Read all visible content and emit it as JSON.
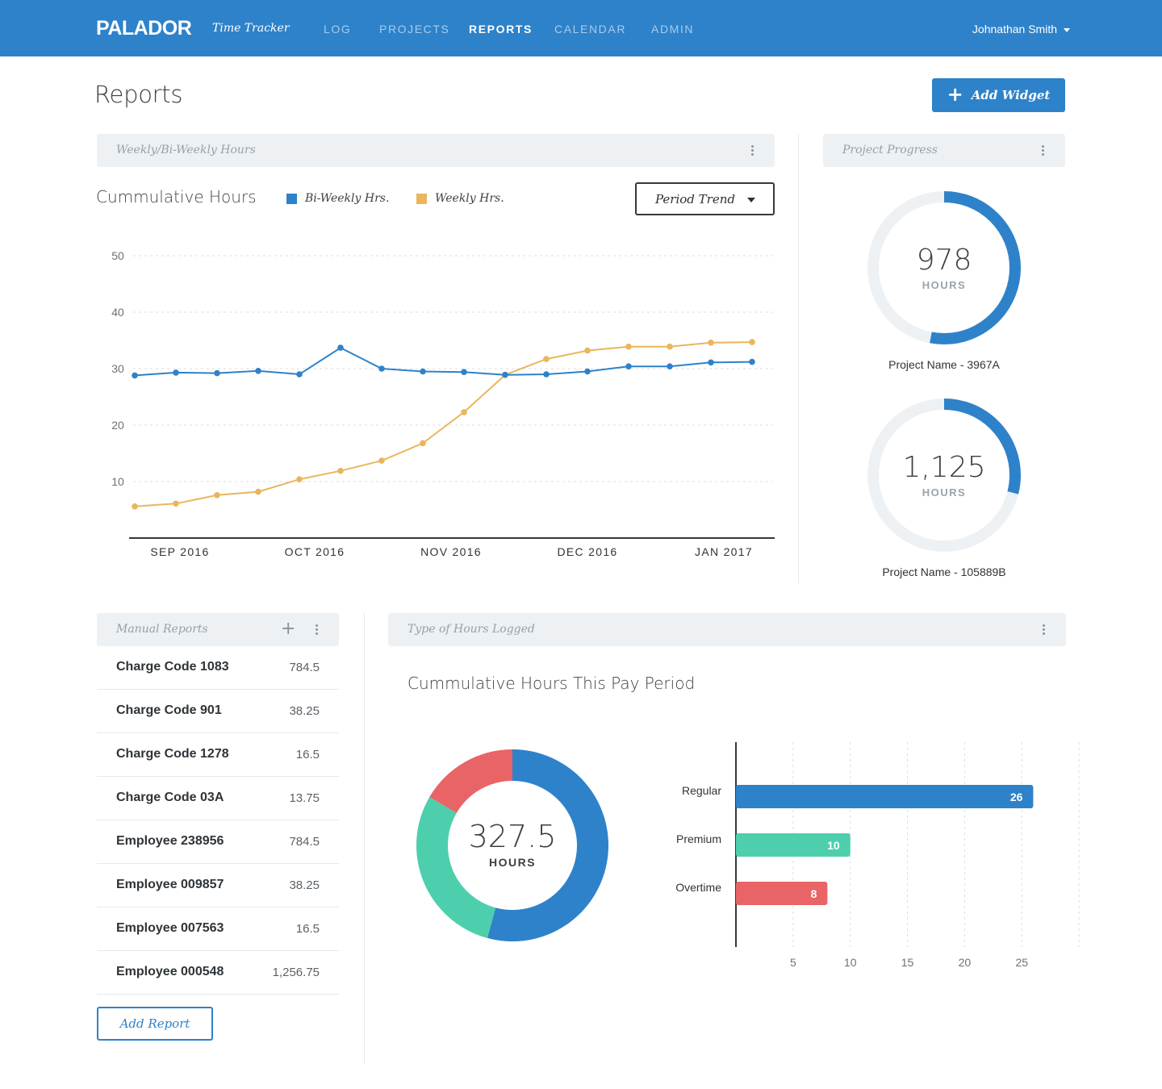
{
  "app": {
    "brand": "PALADOR",
    "subtitle": "Time Tracker"
  },
  "nav": [
    {
      "label": "LOG",
      "active": false
    },
    {
      "label": "PROJECTS",
      "active": false
    },
    {
      "label": "REPORTS",
      "active": true
    },
    {
      "label": "CALENDAR",
      "active": false
    },
    {
      "label": "ADMIN",
      "active": false
    }
  ],
  "user": {
    "name": "Johnathan Smith"
  },
  "page": {
    "title": "Reports",
    "add_widget_label": "Add Widget"
  },
  "colors": {
    "brand_blue": "#2e82c9",
    "weekly_yellow": "#e9b65c",
    "premium_green": "#4dcfad",
    "overtime_red": "#e96466"
  },
  "weekly_widget": {
    "header": "Weekly/Bi-Weekly Hours",
    "chart_title": "Cummulative Hours",
    "legend": {
      "biweekly": "Bi-Weekly Hrs.",
      "weekly": "Weekly Hrs."
    },
    "dropdown": "Period Trend"
  },
  "project_widget": {
    "header": "Project Progress",
    "projects": [
      {
        "value": "978",
        "unit": "HOURS",
        "name": "Project Name - 3967A",
        "progress": 0.53
      },
      {
        "value": "1,125",
        "unit": "HOURS",
        "name": "Project Name - 105889B",
        "progress": 0.29
      }
    ]
  },
  "manual_reports": {
    "header": "Manual Reports",
    "rows": [
      {
        "name": "Charge Code 1083",
        "value": "784.5"
      },
      {
        "name": "Charge Code 901",
        "value": "38.25"
      },
      {
        "name": "Charge Code 1278",
        "value": "16.5"
      },
      {
        "name": "Charge Code 03A",
        "value": "13.75"
      },
      {
        "name": "Employee 238956",
        "value": "784.5"
      },
      {
        "name": "Employee 009857",
        "value": "38.25"
      },
      {
        "name": "Employee 007563",
        "value": "16.5"
      },
      {
        "name": "Employee 000548",
        "value": "1,256.75"
      }
    ],
    "add_label": "Add Report"
  },
  "hours_widget": {
    "header": "Type of Hours Logged",
    "chart_title": "Cummulative Hours This Pay Period",
    "donut_value": "327.5",
    "donut_unit": "HOURS"
  },
  "chart_data": [
    {
      "type": "line",
      "title": "Cummulative Hours",
      "x_tick_labels": [
        "SEP 2016",
        "OCT 2016",
        "NOV 2016",
        "DEC 2016",
        "JAN 2017"
      ],
      "y_ticks": [
        10,
        20,
        30,
        40,
        50
      ],
      "ylim": [
        0,
        50
      ],
      "grid": true,
      "series": [
        {
          "name": "Bi-Weekly Hrs.",
          "color": "#2e82c9",
          "values": [
            28.8,
            29.3,
            29.2,
            29.6,
            29.0,
            33.7,
            30.0,
            29.5,
            29.4,
            28.9,
            29.0,
            29.5,
            30.4,
            30.4,
            31.1,
            31.2
          ]
        },
        {
          "name": "Weekly Hrs.",
          "color": "#e9b65c",
          "values": [
            5.6,
            6.1,
            7.6,
            8.2,
            10.4,
            11.9,
            13.7,
            16.8,
            22.3,
            28.9,
            31.7,
            33.2,
            33.9,
            33.9,
            34.6,
            34.7
          ]
        }
      ]
    },
    {
      "type": "pie",
      "title": "Cummulative Hours This Pay Period",
      "center_label": "327.5",
      "slices": [
        {
          "name": "Regular",
          "value": 0.542,
          "color": "#2e82c9"
        },
        {
          "name": "Premium",
          "value": 0.292,
          "color": "#4dcfad"
        },
        {
          "name": "Overtime",
          "value": 0.166,
          "color": "#e96466"
        }
      ]
    },
    {
      "type": "bar",
      "orientation": "horizontal",
      "categories": [
        "Regular",
        "Premium",
        "Overtime"
      ],
      "values": [
        26,
        10,
        8
      ],
      "colors": [
        "#2e82c9",
        "#4dcfad",
        "#e96466"
      ],
      "x_ticks": [
        5,
        10,
        15,
        20,
        25
      ],
      "xlim": [
        0,
        29
      ],
      "grid": true
    }
  ]
}
